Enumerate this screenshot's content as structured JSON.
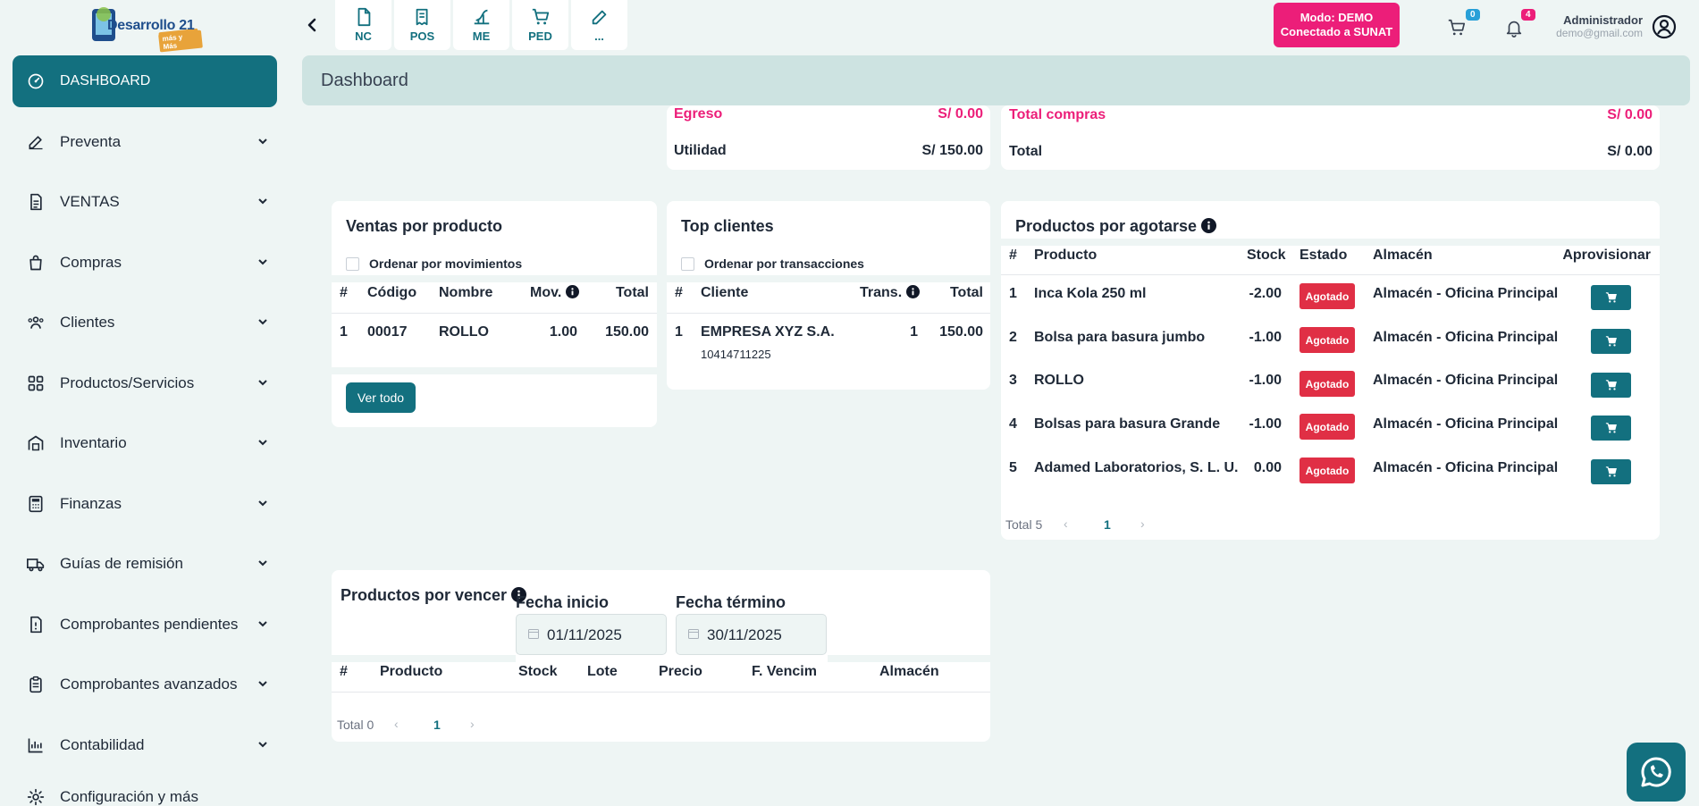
{
  "brand": {
    "name": "Desarrollo 21",
    "tagline": "más y Más"
  },
  "sidebar": {
    "items": [
      {
        "label": "DASHBOARD",
        "icon": "gauge-icon",
        "active": true
      },
      {
        "label": "Preventa",
        "icon": "edit-icon"
      },
      {
        "label": "VENTAS",
        "icon": "document-icon"
      },
      {
        "label": "Compras",
        "icon": "shopping-bag-icon"
      },
      {
        "label": "Clientes",
        "icon": "users-icon"
      },
      {
        "label": "Productos/Servicios",
        "icon": "grid-icon"
      },
      {
        "label": "Inventario",
        "icon": "warehouse-icon"
      },
      {
        "label": "Finanzas",
        "icon": "calculator-icon"
      },
      {
        "label": "Guías de remisión",
        "icon": "truck-icon"
      },
      {
        "label": "Comprobantes pendientes",
        "icon": "pending-document-icon"
      },
      {
        "label": "Comprobantes avanzados",
        "icon": "clipboard-icon"
      },
      {
        "label": "Contabilidad",
        "icon": "chart-icon"
      },
      {
        "label": "Configuración y más",
        "icon": "gear-icon"
      }
    ]
  },
  "quick_access": [
    {
      "label": "NC",
      "icon": "file-icon"
    },
    {
      "label": "POS",
      "icon": "receipt-icon"
    },
    {
      "label": "ME",
      "icon": "chart-curve-icon"
    },
    {
      "label": "PED",
      "icon": "cart-icon"
    },
    {
      "label": "...",
      "icon": "edit-icon"
    }
  ],
  "mode": {
    "line1": "Modo: DEMO",
    "line2": "Conectado a SUNAT",
    "color": "#ec1e79"
  },
  "cart_count": "0",
  "notification_count": "4",
  "user": {
    "name": "Administrador",
    "email": "demo@gmail.com"
  },
  "page_title": "Dashboard",
  "summary_left": {
    "egreso_label": "Egreso",
    "egreso_value": "S/ 0.00",
    "utilidad_label": "Utilidad",
    "utilidad_value": "S/ 150.00"
  },
  "summary_right": {
    "compras_label": "Total compras",
    "compras_value": "S/ 0.00",
    "total_label": "Total",
    "total_value": "S/ 0.00"
  },
  "ventas_producto": {
    "title": "Ventas por producto",
    "checkbox_label": "Ordenar por movimientos",
    "columns": [
      "#",
      "Código",
      "Nombre",
      "Mov.",
      "Total"
    ],
    "rows": [
      {
        "n": "1",
        "codigo": "00017",
        "nombre": "ROLLO",
        "mov": "1.00",
        "total": "150.00"
      }
    ],
    "button": "Ver todo"
  },
  "top_clientes": {
    "title": "Top clientes",
    "checkbox_label": "Ordenar por transacciones",
    "columns": [
      "#",
      "Cliente",
      "Trans.",
      "Total"
    ],
    "rows": [
      {
        "n": "1",
        "cliente": "EMPRESA XYZ S.A.",
        "ruc": "10414711225",
        "trans": "1",
        "total": "150.00"
      }
    ]
  },
  "productos_agotarse": {
    "title": "Productos por agotarse",
    "columns": [
      "#",
      "Producto",
      "Stock",
      "Estado",
      "Almacén",
      "Aprovisionar"
    ],
    "rows": [
      {
        "n": "1",
        "producto": "Inca Kola 250 ml",
        "stock": "-2.00",
        "estado": "Agotado",
        "almacen": "Almacén - Oficina Principal"
      },
      {
        "n": "2",
        "producto": "Bolsa para basura jumbo",
        "stock": "-1.00",
        "estado": "Agotado",
        "almacen": "Almacén - Oficina Principal"
      },
      {
        "n": "3",
        "producto": "ROLLO",
        "stock": "-1.00",
        "estado": "Agotado",
        "almacen": "Almacén - Oficina Principal"
      },
      {
        "n": "4",
        "producto": "Bolsas para basura Grande",
        "stock": "-1.00",
        "estado": "Agotado",
        "almacen": "Almacén - Oficina Principal"
      },
      {
        "n": "5",
        "producto": "Adamed Laboratorios, S. L. U.",
        "stock": "0.00",
        "estado": "Agotado",
        "almacen": "Almacén - Oficina Principal"
      }
    ],
    "total_label": "Total 5",
    "page": "1"
  },
  "productos_vencer": {
    "title": "Productos por vencer",
    "fecha_inicio_label": "Fecha inicio",
    "fecha_inicio": "01/11/2025",
    "fecha_termino_label": "Fecha término",
    "fecha_termino": "30/11/2025",
    "columns": [
      "#",
      "Producto",
      "Stock",
      "Lote",
      "Precio",
      "F. Vencim",
      "Almacén"
    ],
    "total_label": "Total 0",
    "page": "1"
  },
  "colors": {
    "primary": "#13707f",
    "accent": "#ec1e79",
    "danger": "#e02f45",
    "header": "#cde3e1"
  }
}
